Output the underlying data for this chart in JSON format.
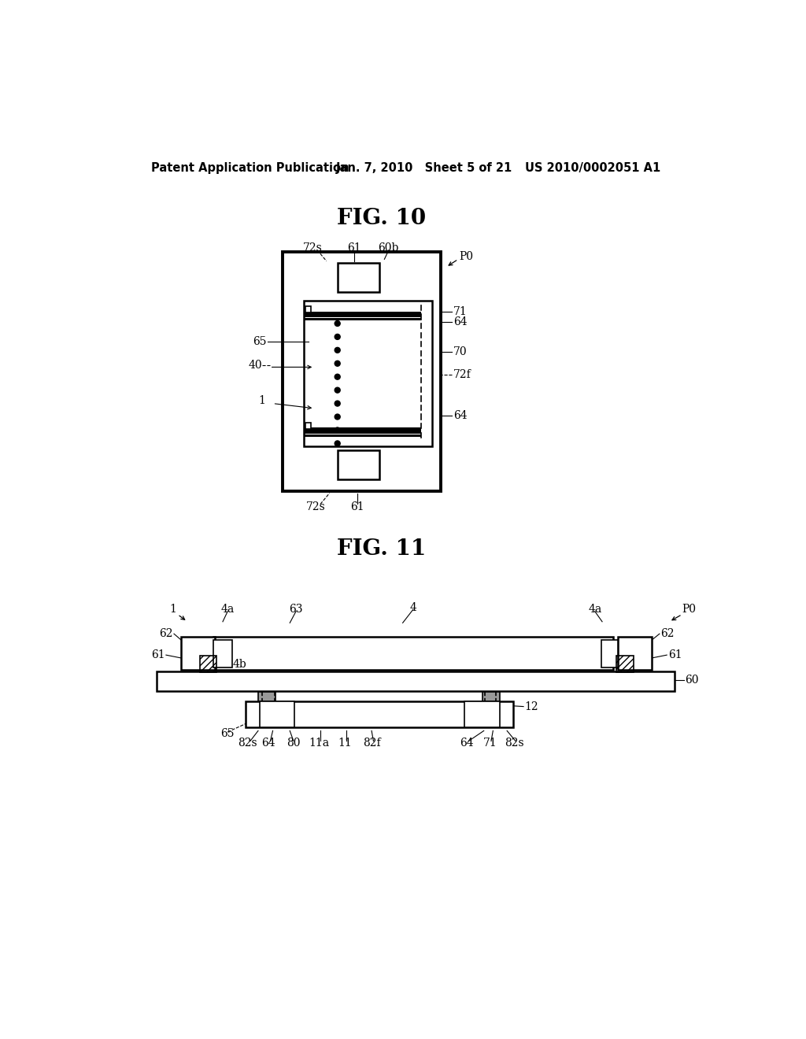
{
  "bg_color": "#ffffff",
  "header_left": "Patent Application Publication",
  "header_center": "Jan. 7, 2010   Sheet 5 of 21",
  "header_right": "US 2010/0002051 A1",
  "fig10_title": "FIG. 10",
  "fig11_title": "FIG. 11"
}
